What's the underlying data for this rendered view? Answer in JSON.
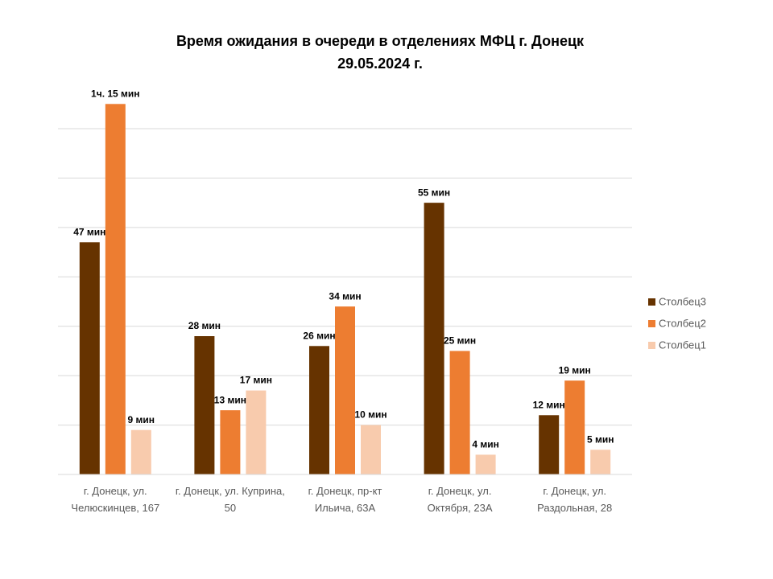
{
  "chart_data": {
    "type": "bar",
    "title": "Время ожидания в очереди в отделениях МФЦ г. Донецк",
    "subtitle": "29.05.2024 г.",
    "categories": [
      "г. Донецк, ул. Челюскинцев, 167",
      "г. Донецк, ул. Куприна, 50",
      "г. Донецк, пр-кт Ильича, 63А",
      "г. Донецк, ул. Октября, 23А",
      "г. Донецк, ул. Раздольная, 28"
    ],
    "series": [
      {
        "name": "Столбец3",
        "color": "#663300",
        "values": [
          47,
          28,
          26,
          55,
          12
        ],
        "value_labels": [
          "47 мин",
          "28 мин",
          "26 мин",
          "55 мин",
          "12 мин"
        ]
      },
      {
        "name": "Столбец2",
        "color": "#ED7D31",
        "values": [
          75,
          13,
          34,
          25,
          19
        ],
        "value_labels": [
          "1ч. 15 мин",
          "13 мин",
          "34 мин",
          "25 мин",
          "19 мин"
        ]
      },
      {
        "name": "Столбец1",
        "color": "#F8CBAD",
        "values": [
          9,
          17,
          10,
          4,
          5
        ],
        "value_labels": [
          "9 мин",
          "17 мин",
          "10 мин",
          "4 мин",
          "5 мин"
        ]
      }
    ],
    "ylim": [
      0,
      70
    ],
    "yticks": [
      0,
      10,
      20,
      30,
      40,
      50,
      60,
      70
    ],
    "grid": true,
    "legend": "right"
  }
}
